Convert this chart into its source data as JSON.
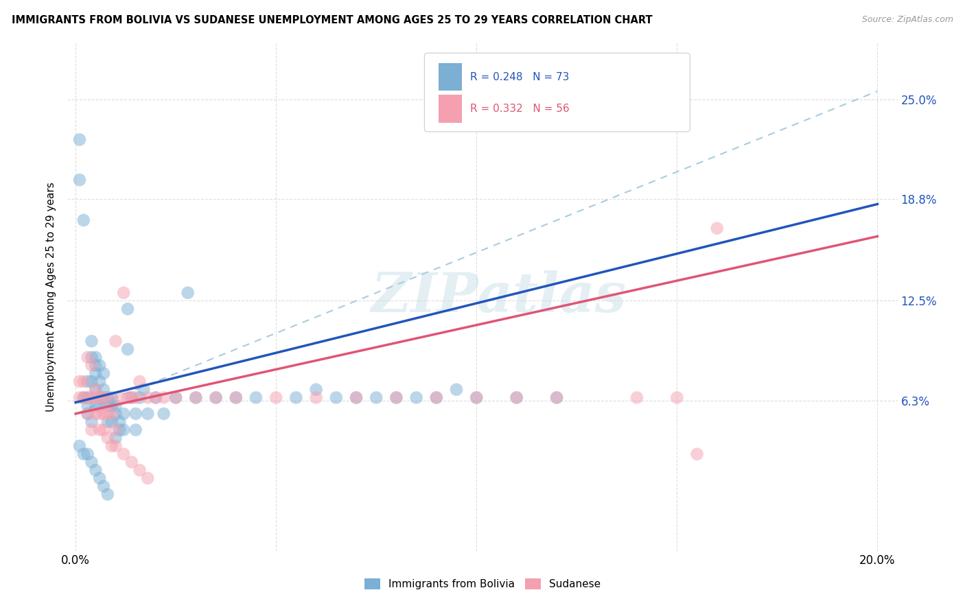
{
  "title": "IMMIGRANTS FROM BOLIVIA VS SUDANESE UNEMPLOYMENT AMONG AGES 25 TO 29 YEARS CORRELATION CHART",
  "source": "Source: ZipAtlas.com",
  "ylabel": "Unemployment Among Ages 25 to 29 years",
  "ytick_labels": [
    "25.0%",
    "18.8%",
    "12.5%",
    "6.3%"
  ],
  "ytick_values": [
    0.25,
    0.188,
    0.125,
    0.063
  ],
  "xtick_values": [
    0.0,
    0.05,
    0.1,
    0.15,
    0.2
  ],
  "xlim": [
    -0.002,
    0.205
  ],
  "ylim": [
    -0.03,
    0.285
  ],
  "watermark": "ZIPatlas",
  "R_bolivia": 0.248,
  "N_bolivia": 73,
  "R_sudanese": 0.332,
  "N_sudanese": 56,
  "color_bolivia": "#7bafd4",
  "color_sudanese": "#f4a0b0",
  "line_color_bolivia": "#2255bb",
  "line_color_sudanese": "#e05575",
  "line_color_dashed": "#aaccdd",
  "background_color": "#ffffff",
  "bolivia_x": [
    0.001,
    0.001,
    0.002,
    0.002,
    0.003,
    0.003,
    0.003,
    0.003,
    0.004,
    0.004,
    0.004,
    0.004,
    0.005,
    0.005,
    0.005,
    0.005,
    0.005,
    0.006,
    0.006,
    0.006,
    0.006,
    0.007,
    0.007,
    0.007,
    0.008,
    0.008,
    0.008,
    0.009,
    0.009,
    0.009,
    0.01,
    0.01,
    0.01,
    0.011,
    0.011,
    0.012,
    0.012,
    0.013,
    0.013,
    0.014,
    0.015,
    0.015,
    0.016,
    0.017,
    0.018,
    0.02,
    0.022,
    0.025,
    0.028,
    0.03,
    0.035,
    0.04,
    0.045,
    0.055,
    0.06,
    0.065,
    0.07,
    0.075,
    0.08,
    0.085,
    0.09,
    0.095,
    0.1,
    0.11,
    0.12,
    0.001,
    0.002,
    0.003,
    0.004,
    0.005,
    0.006,
    0.007,
    0.008
  ],
  "bolivia_y": [
    0.225,
    0.2,
    0.175,
    0.065,
    0.065,
    0.06,
    0.055,
    0.075,
    0.09,
    0.1,
    0.075,
    0.05,
    0.08,
    0.085,
    0.09,
    0.07,
    0.06,
    0.065,
    0.075,
    0.085,
    0.06,
    0.065,
    0.07,
    0.08,
    0.065,
    0.06,
    0.05,
    0.06,
    0.065,
    0.05,
    0.055,
    0.06,
    0.04,
    0.05,
    0.045,
    0.055,
    0.045,
    0.12,
    0.095,
    0.065,
    0.055,
    0.045,
    0.065,
    0.07,
    0.055,
    0.065,
    0.055,
    0.065,
    0.13,
    0.065,
    0.065,
    0.065,
    0.065,
    0.065,
    0.07,
    0.065,
    0.065,
    0.065,
    0.065,
    0.065,
    0.065,
    0.07,
    0.065,
    0.065,
    0.065,
    0.035,
    0.03,
    0.03,
    0.025,
    0.02,
    0.015,
    0.01,
    0.005
  ],
  "sudanese_x": [
    0.001,
    0.001,
    0.002,
    0.002,
    0.003,
    0.003,
    0.004,
    0.004,
    0.005,
    0.005,
    0.006,
    0.006,
    0.007,
    0.007,
    0.008,
    0.008,
    0.009,
    0.01,
    0.01,
    0.011,
    0.012,
    0.013,
    0.014,
    0.015,
    0.016,
    0.018,
    0.02,
    0.022,
    0.025,
    0.03,
    0.035,
    0.04,
    0.05,
    0.06,
    0.07,
    0.08,
    0.09,
    0.1,
    0.11,
    0.12,
    0.14,
    0.15,
    0.16,
    0.003,
    0.004,
    0.005,
    0.006,
    0.007,
    0.008,
    0.009,
    0.01,
    0.012,
    0.014,
    0.016,
    0.018,
    0.155
  ],
  "sudanese_y": [
    0.075,
    0.065,
    0.075,
    0.065,
    0.09,
    0.065,
    0.085,
    0.065,
    0.07,
    0.065,
    0.065,
    0.055,
    0.065,
    0.055,
    0.055,
    0.065,
    0.055,
    0.045,
    0.1,
    0.065,
    0.13,
    0.065,
    0.065,
    0.065,
    0.075,
    0.065,
    0.065,
    0.065,
    0.065,
    0.065,
    0.065,
    0.065,
    0.065,
    0.065,
    0.065,
    0.065,
    0.065,
    0.065,
    0.065,
    0.065,
    0.065,
    0.065,
    0.17,
    0.055,
    0.045,
    0.055,
    0.045,
    0.045,
    0.04,
    0.035,
    0.035,
    0.03,
    0.025,
    0.02,
    0.015,
    0.03
  ],
  "dashed_line": [
    [
      0.0,
      0.2
    ],
    [
      0.055,
      0.255
    ]
  ]
}
